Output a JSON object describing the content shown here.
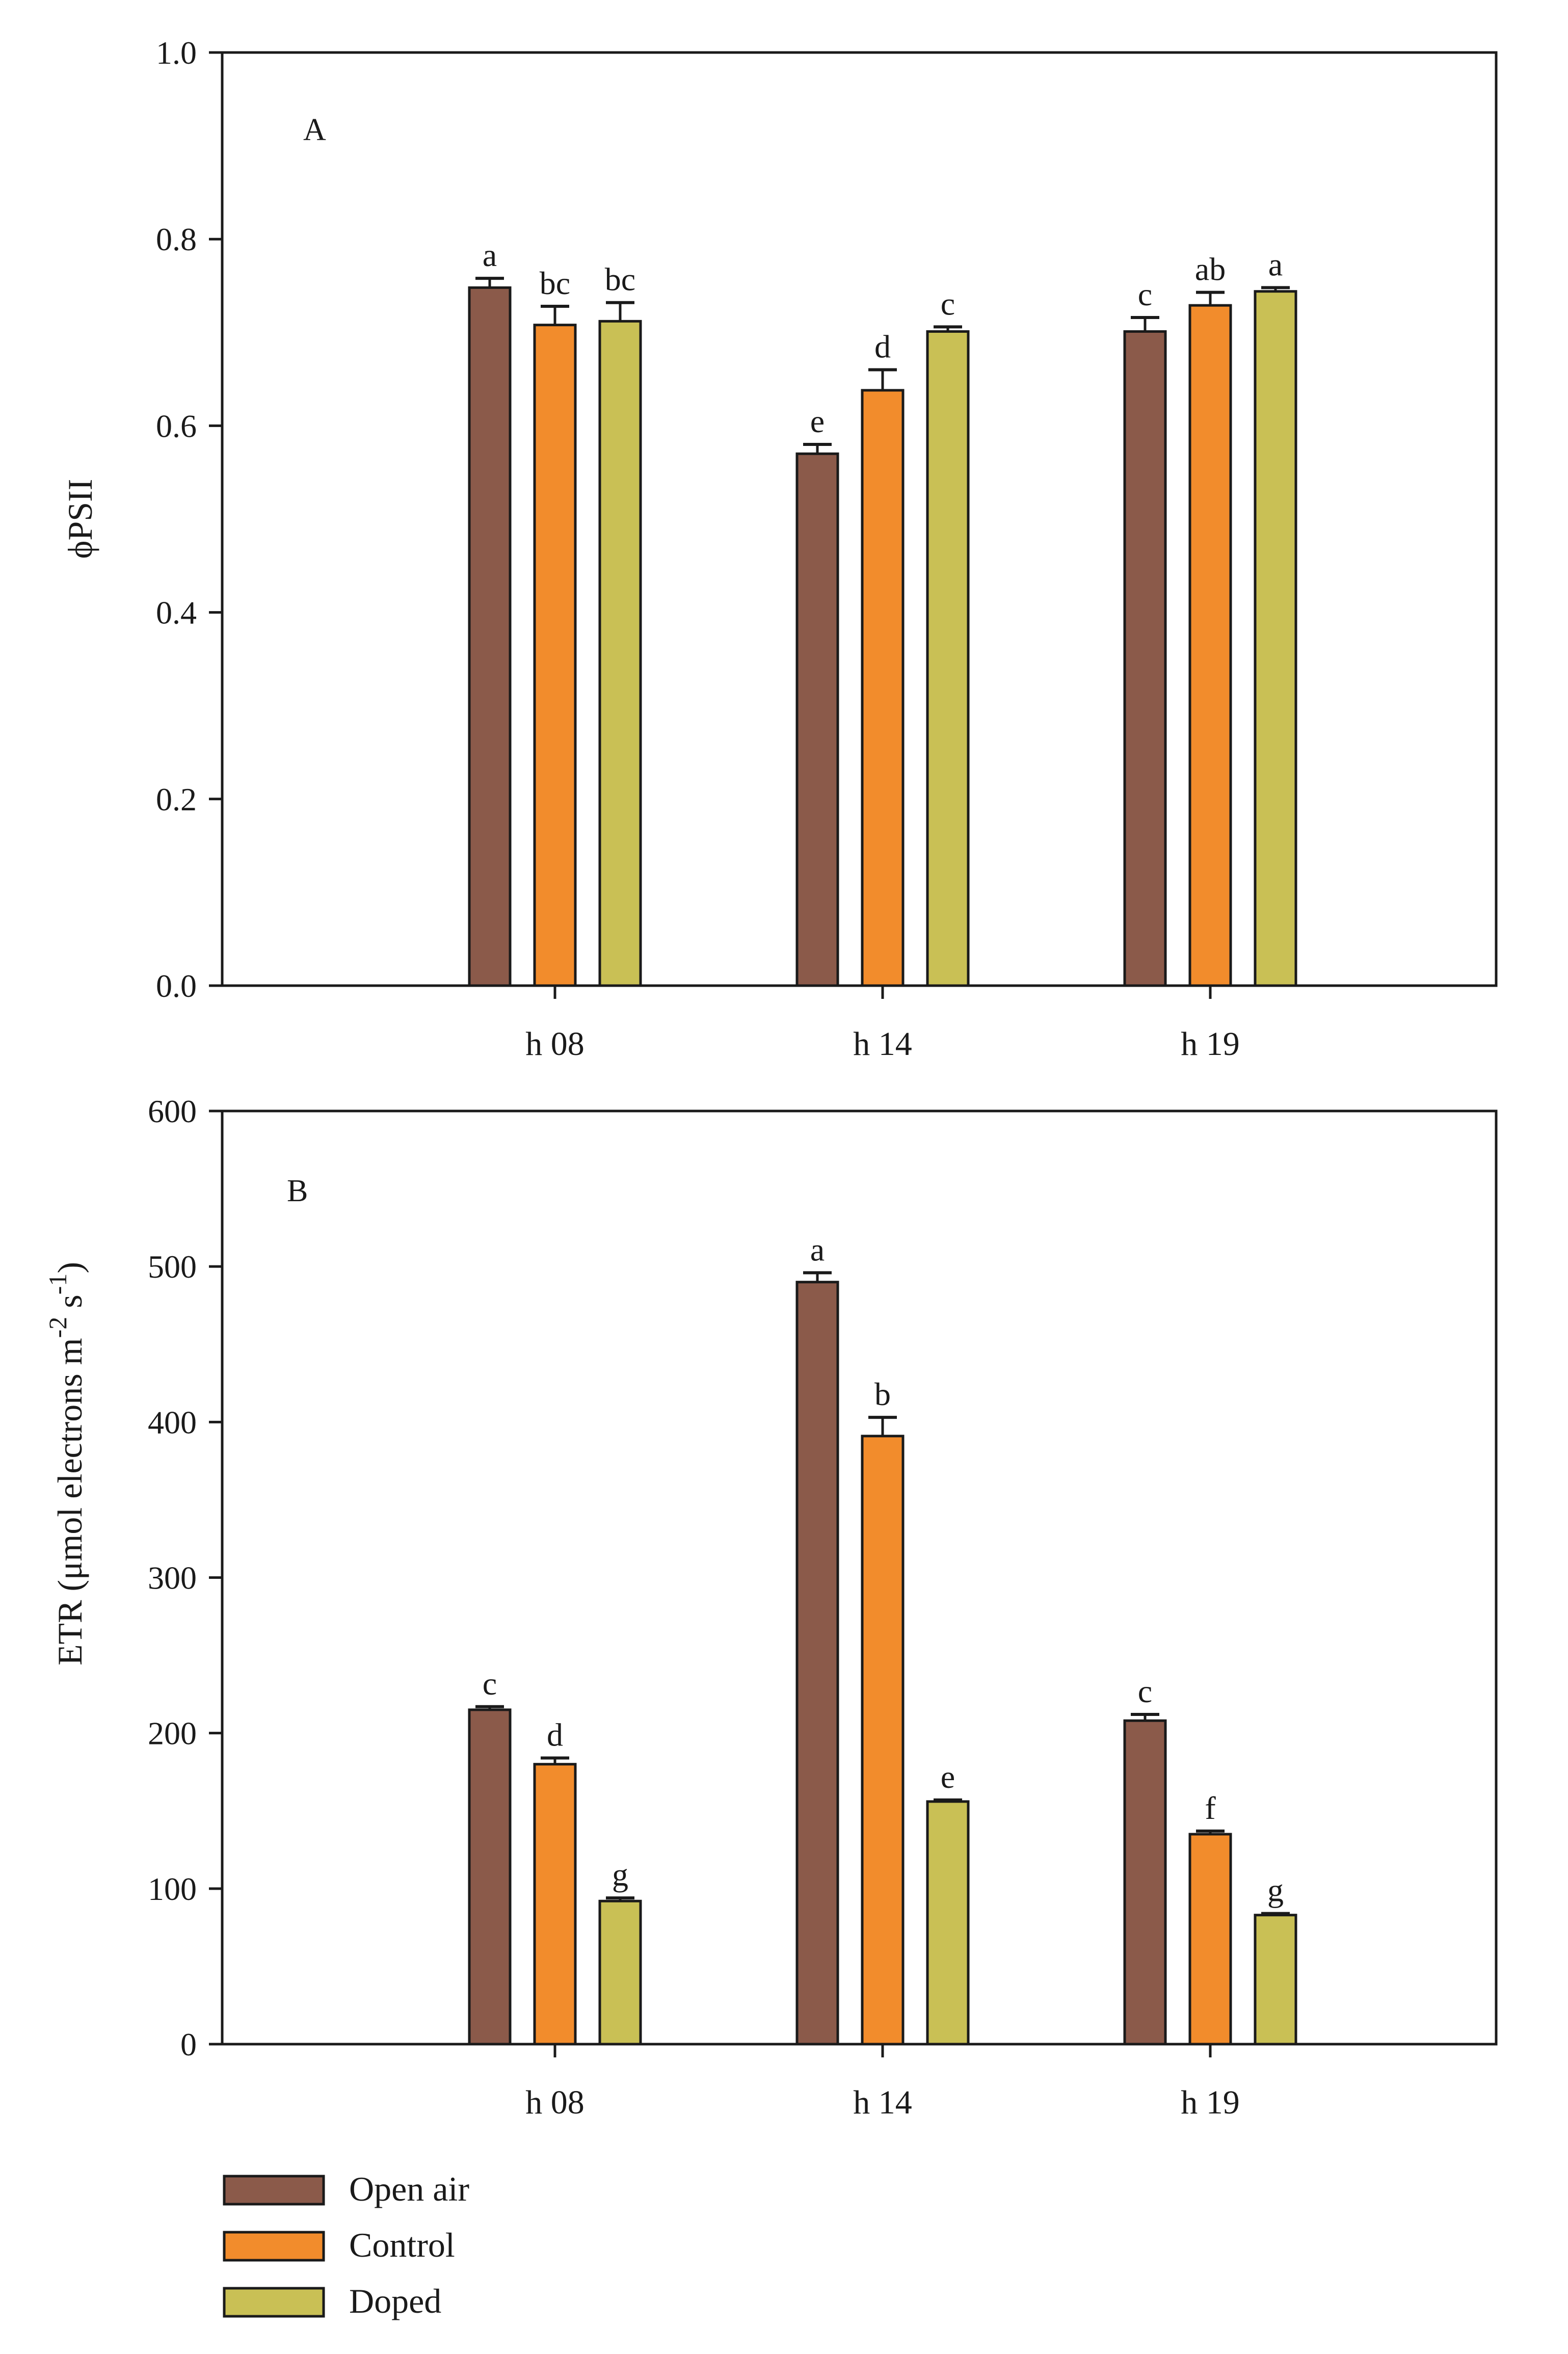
{
  "chart_data": [
    {
      "type": "bar",
      "panel_label": "A",
      "categories": [
        "h 08",
        "h 14",
        "h 19"
      ],
      "ylabel": "ϕPSII",
      "xlabel": "",
      "ylim": [
        0,
        1.0
      ],
      "yticks": [
        0.0,
        0.2,
        0.4,
        0.6,
        0.8,
        1.0
      ],
      "ytick_labels": [
        "0.0",
        "0.2",
        "0.4",
        "0.6",
        "0.8",
        "1.0"
      ],
      "grid": false,
      "series": [
        {
          "name": "Open air",
          "values": [
            0.748,
            0.57,
            0.701
          ],
          "errors": [
            0.01,
            0.01,
            0.015
          ],
          "letters": [
            "a",
            "e",
            "c"
          ]
        },
        {
          "name": "Control",
          "values": [
            0.708,
            0.638,
            0.729
          ],
          "errors": [
            0.02,
            0.022,
            0.014
          ],
          "letters": [
            "bc",
            "d",
            "ab"
          ]
        },
        {
          "name": "Doped",
          "values": [
            0.712,
            0.701,
            0.744
          ],
          "errors": [
            0.02,
            0.005,
            0.004
          ],
          "letters": [
            "bc",
            "c",
            "a"
          ]
        }
      ]
    },
    {
      "type": "bar",
      "panel_label": "B",
      "categories": [
        "h 08",
        "h 14",
        "h 19"
      ],
      "ylabel_main": "ETR (μmol electrons m",
      "ylabel_sup1": "-2",
      "ylabel_mid": " s",
      "ylabel_sup2": "-1",
      "ylabel_end": ")",
      "xlabel": "",
      "ylim": [
        0,
        600
      ],
      "yticks": [
        0,
        100,
        200,
        300,
        400,
        500,
        600
      ],
      "ytick_labels": [
        "0",
        "100",
        "200",
        "300",
        "400",
        "500",
        "600"
      ],
      "grid": false,
      "series": [
        {
          "name": "Open air",
          "values": [
            215,
            490,
            208
          ],
          "errors": [
            2,
            6,
            4
          ],
          "letters": [
            "c",
            "a",
            "c"
          ]
        },
        {
          "name": "Control",
          "values": [
            180,
            391,
            135
          ],
          "errors": [
            4,
            12,
            2
          ],
          "letters": [
            "d",
            "b",
            "f"
          ]
        },
        {
          "name": "Doped",
          "values": [
            92,
            156,
            83
          ],
          "errors": [
            2,
            1,
            1
          ],
          "letters": [
            "g",
            "e",
            "g"
          ]
        }
      ]
    }
  ],
  "legend": {
    "placement": "bottom-left",
    "items": [
      {
        "label": "Open air",
        "color": "#8B5A4A"
      },
      {
        "label": "Control",
        "color": "#F28C2C"
      },
      {
        "label": "Doped",
        "color": "#C9C055"
      }
    ]
  },
  "colors": {
    "open_air": "#8B5A4A",
    "control": "#F28C2C",
    "doped": "#C9C055",
    "axis": "#1a1a1a"
  }
}
